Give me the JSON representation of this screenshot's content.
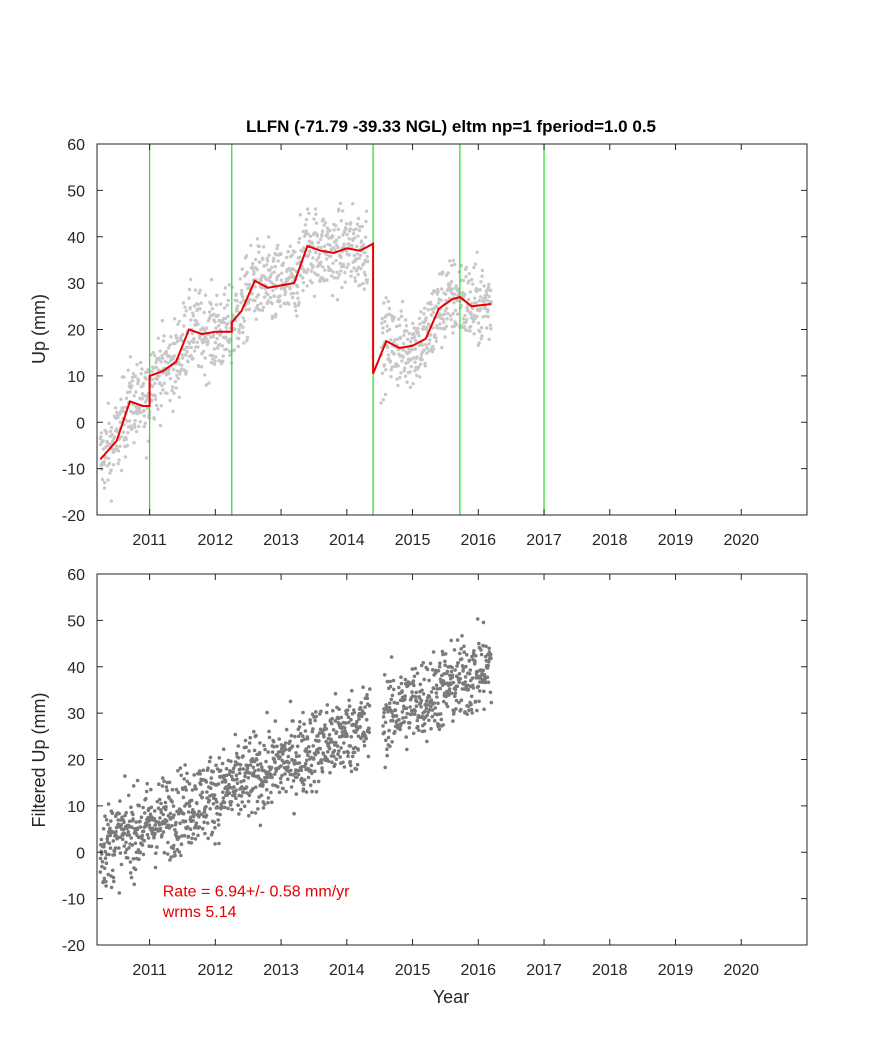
{
  "chart_data": [
    {
      "type": "scatter",
      "title": "LLFN (-71.79 -39.33 NGL) eltm np=1 fperiod=1.0 0.5",
      "xlabel": "",
      "ylabel": "Up (mm)",
      "xlim": [
        2010.2,
        2021.0
      ],
      "ylim": [
        -20,
        60
      ],
      "xticks": [
        2011,
        2012,
        2013,
        2014,
        2015,
        2016,
        2017,
        2018,
        2019,
        2020
      ],
      "yticks": [
        -20,
        -10,
        0,
        10,
        20,
        30,
        40,
        50,
        60
      ],
      "grid": false,
      "point_color": "#c8c8c8",
      "fit_color": "#e60000",
      "event_line_color": "#33dd33",
      "event_lines_x": [
        2011.0,
        2012.25,
        2014.4,
        2015.72,
        2017.0
      ],
      "data_range_x": [
        2010.25,
        2016.2
      ],
      "segments": [
        {
          "x0": 2010.25,
          "x1": 2011.0,
          "y_start": -8,
          "y_end": 4
        },
        {
          "x0": 2011.0,
          "x1": 2012.25,
          "y_start": 10,
          "y_end": 20
        },
        {
          "x0": 2012.25,
          "x1": 2014.4,
          "y_start": 21,
          "y_end": 38
        },
        {
          "x0": 2014.4,
          "x1": 2016.2,
          "y_start": 10.5,
          "y_end": 26
        }
      ],
      "fit_line": {
        "name": "",
        "x": [
          2010.25,
          2010.5,
          2010.7,
          2010.9,
          2011.0,
          2011.0,
          2011.2,
          2011.4,
          2011.6,
          2011.8,
          2012.0,
          2012.25,
          2012.25,
          2012.4,
          2012.6,
          2012.8,
          2013.0,
          2013.2,
          2013.4,
          2013.6,
          2013.8,
          2014.0,
          2014.2,
          2014.4,
          2014.4,
          2014.6,
          2014.8,
          2015.0,
          2015.2,
          2015.4,
          2015.6,
          2015.72,
          2015.9,
          2016.2
        ],
        "y": [
          -8,
          -4,
          4.5,
          3.5,
          3.5,
          10,
          11,
          13,
          20,
          19,
          19.5,
          19.5,
          21.5,
          24,
          30.5,
          29,
          29.5,
          30,
          38,
          37,
          36.5,
          37.5,
          37,
          38.5,
          10.5,
          17.5,
          16,
          16.5,
          18,
          24.5,
          26.5,
          27,
          25,
          25.5
        ]
      },
      "scatter_spread_mm": 5
    },
    {
      "type": "scatter",
      "title": "",
      "xlabel": "Year",
      "ylabel": "Filtered Up (mm)",
      "xlim": [
        2010.2,
        2021.0
      ],
      "ylim": [
        -20,
        60
      ],
      "xticks": [
        2011,
        2012,
        2013,
        2014,
        2015,
        2016,
        2017,
        2018,
        2019,
        2020
      ],
      "yticks": [
        -20,
        -10,
        0,
        10,
        20,
        30,
        40,
        50,
        60
      ],
      "grid": false,
      "point_color": "#7a7a7a",
      "trend": {
        "x0": 2010.25,
        "y0": 1,
        "x1": 2016.2,
        "y1": 40
      },
      "gap_x": [
        2014.35,
        2014.55
      ],
      "scatter_spread_mm": 5,
      "annotations": [
        {
          "text": "Rate = 6.94+/- 0.58 mm/yr",
          "x": 2011.2,
          "y": -9.5
        },
        {
          "text": "wrms 5.14",
          "x": 2011.2,
          "y": -14
        }
      ]
    }
  ]
}
